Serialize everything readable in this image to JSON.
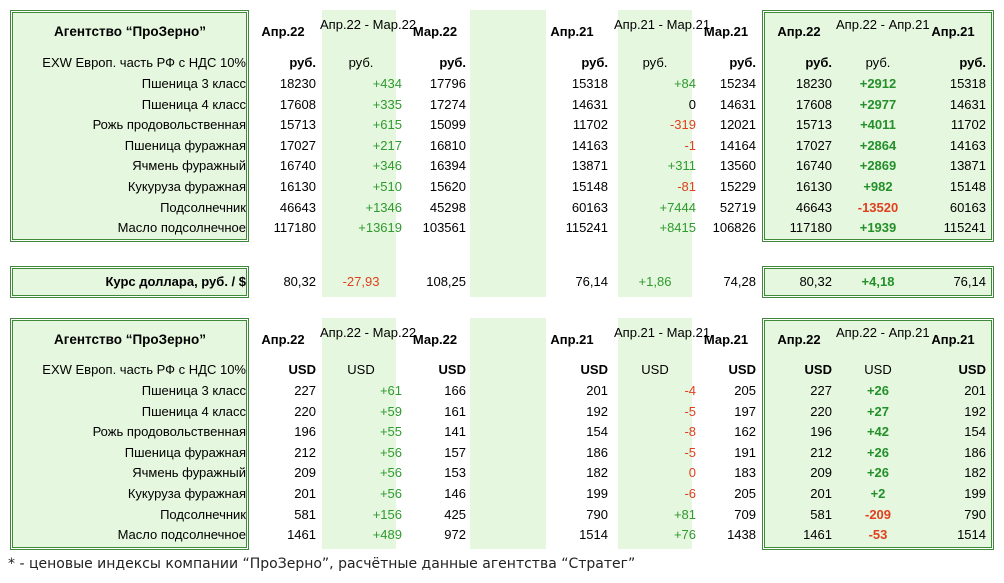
{
  "colors": {
    "positive": "#2f9a2f",
    "negative": "#e0401e",
    "highlight_bg": "#e6f7df",
    "border": "#3f8a3a"
  },
  "header": {
    "agency": "Агентство “ПроЗерно”",
    "c1": "Апр.22",
    "c2": "Апр.22 - Мар.22",
    "c3": "Мар.22",
    "c4": "Апр.21",
    "c5": "Апр.21 - Мар.21",
    "c6": "Мар.21",
    "c7": "Апр.22",
    "c8": "Апр.22 - Апр.21",
    "c9": "Апр.21"
  },
  "rub_table": {
    "subheader": {
      "label": "EXW Европ. часть РФ с НДС 10%",
      "unit": "руб."
    },
    "rows": [
      {
        "name": "Пшеница 3 класс",
        "v": [
          "18230",
          "+434",
          "17796",
          "15318",
          "+84",
          "15234",
          "18230",
          "+2912",
          "15318"
        ]
      },
      {
        "name": "Пшеница 4 класс",
        "v": [
          "17608",
          "+335",
          "17274",
          "14631",
          "0",
          "14631",
          "17608",
          "+2977",
          "14631"
        ]
      },
      {
        "name": "Рожь продовольственная",
        "v": [
          "15713",
          "+615",
          "15099",
          "11702",
          "-319",
          "12021",
          "15713",
          "+4011",
          "11702"
        ]
      },
      {
        "name": "Пшеница фуражная",
        "v": [
          "17027",
          "+217",
          "16810",
          "14163",
          "-1",
          "14164",
          "17027",
          "+2864",
          "14163"
        ]
      },
      {
        "name": "Ячмень фуражный",
        "v": [
          "16740",
          "+346",
          "16394",
          "13871",
          "+311",
          "13560",
          "16740",
          "+2869",
          "13871"
        ]
      },
      {
        "name": "Кукуруза фуражная",
        "v": [
          "16130",
          "+510",
          "15620",
          "15148",
          "-81",
          "15229",
          "16130",
          "+982",
          "15148"
        ]
      },
      {
        "name": "Подсолнечник",
        "v": [
          "46643",
          "+1346",
          "45298",
          "60163",
          "+7444",
          "52719",
          "46643",
          "-13520",
          "60163"
        ]
      },
      {
        "name": "Масло подсолнечное",
        "v": [
          "117180",
          "+13619",
          "103561",
          "115241",
          "+8415",
          "106826",
          "117180",
          "+1939",
          "115241"
        ]
      }
    ]
  },
  "usd_rate": {
    "label": "Курс доллара, руб. / $",
    "v": [
      "80,32",
      "-27,93",
      "108,25",
      "76,14",
      "+1,86",
      "74,28",
      "80,32",
      "+4,18",
      "76,14"
    ]
  },
  "usd_table": {
    "subheader": {
      "label": "EXW Европ. часть РФ с НДС 10%",
      "unit": "USD"
    },
    "rows": [
      {
        "name": "Пшеница 3 класс",
        "v": [
          "227",
          "+61",
          "166",
          "201",
          "-4",
          "205",
          "227",
          "+26",
          "201"
        ]
      },
      {
        "name": "Пшеница 4 класс",
        "v": [
          "220",
          "+59",
          "161",
          "192",
          "-5",
          "197",
          "220",
          "+27",
          "192"
        ]
      },
      {
        "name": "Рожь продовольственная",
        "v": [
          "196",
          "+55",
          "141",
          "154",
          "-8",
          "162",
          "196",
          "+42",
          "154"
        ]
      },
      {
        "name": "Пшеница фуражная",
        "v": [
          "212",
          "+56",
          "157",
          "186",
          "-5",
          "191",
          "212",
          "+26",
          "186"
        ]
      },
      {
        "name": "Ячмень фуражный",
        "v": [
          "209",
          "+56",
          "153",
          "182",
          "0",
          "183",
          "209",
          "+26",
          "182"
        ]
      },
      {
        "name": "Кукуруза фуражная",
        "v": [
          "201",
          "+56",
          "146",
          "199",
          "-6",
          "205",
          "201",
          "+2",
          "199"
        ]
      },
      {
        "name": "Подсолнечник",
        "v": [
          "581",
          "+156",
          "425",
          "790",
          "+81",
          "709",
          "581",
          "-209",
          "790"
        ]
      },
      {
        "name": "Масло подсолнечное",
        "v": [
          "1461",
          "+489",
          "972",
          "1514",
          "+76",
          "1438",
          "1461",
          "-53",
          "1514"
        ]
      }
    ]
  },
  "footnote": "* - ценовые индексы компании “ПроЗерно”, расчётные данные агентства “Стратег”"
}
